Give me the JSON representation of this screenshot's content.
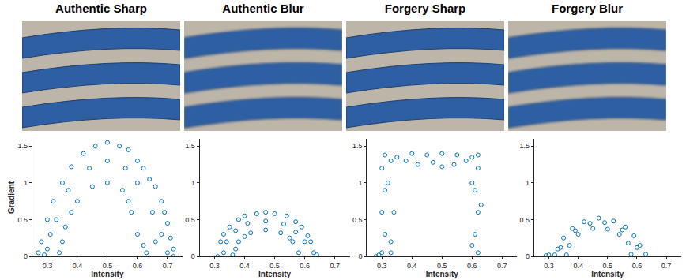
{
  "chart_data": [
    {
      "type": "scatter",
      "title": "Authentic Sharp",
      "x_label": "Intensity",
      "y_label": "Gradient",
      "xlim": [
        0.25,
        0.75
      ],
      "ylim": [
        0,
        1.6
      ],
      "xticks": [
        0.3,
        0.4,
        0.5,
        0.6,
        0.7
      ],
      "yticks": [
        0,
        0.5,
        1,
        1.5
      ],
      "color": "#0072bd",
      "marker": "circle-open",
      "x": [
        0.27,
        0.28,
        0.3,
        0.32,
        0.35,
        0.38,
        0.42,
        0.46,
        0.5,
        0.54,
        0.57,
        0.6,
        0.62,
        0.64,
        0.66,
        0.68,
        0.69,
        0.7,
        0.71,
        0.72,
        0.72,
        0.34,
        0.35,
        0.36,
        0.38,
        0.4,
        0.45,
        0.5,
        0.55,
        0.57,
        0.58,
        0.6,
        0.62,
        0.63,
        0.3,
        0.33,
        0.37,
        0.44,
        0.5,
        0.56,
        0.6,
        0.65,
        0.68,
        0.31,
        0.29,
        0.66,
        0.7
      ],
      "values": [
        0.05,
        0.2,
        0.5,
        0.75,
        1.0,
        1.22,
        1.4,
        1.5,
        1.55,
        1.5,
        1.45,
        1.3,
        1.2,
        1.05,
        0.95,
        0.75,
        0.6,
        0.45,
        0.25,
        0.1,
        0.0,
        0.05,
        0.2,
        0.4,
        0.6,
        0.75,
        0.95,
        1.0,
        0.9,
        0.75,
        0.6,
        0.3,
        0.15,
        0.05,
        0.1,
        0.5,
        0.9,
        1.2,
        1.3,
        1.2,
        1.0,
        0.6,
        0.3,
        0.3,
        0.02,
        0.2,
        0.05
      ]
    },
    {
      "type": "scatter",
      "title": "Authentic Blur",
      "x_label": "Intensity",
      "xlim": [
        0.25,
        0.75
      ],
      "ylim": [
        0,
        1.6
      ],
      "xticks": [
        0.3,
        0.4,
        0.5,
        0.6,
        0.7
      ],
      "yticks": [
        0,
        0.5,
        1,
        1.5
      ],
      "color": "#0072bd",
      "marker": "circle-open",
      "x": [
        0.31,
        0.32,
        0.33,
        0.35,
        0.38,
        0.4,
        0.44,
        0.47,
        0.5,
        0.54,
        0.57,
        0.59,
        0.61,
        0.62,
        0.64,
        0.36,
        0.37,
        0.38,
        0.4,
        0.42,
        0.47,
        0.52,
        0.55,
        0.56,
        0.58,
        0.34,
        0.37,
        0.41,
        0.47,
        0.53,
        0.57,
        0.6,
        0.63,
        0.33
      ],
      "values": [
        0.0,
        0.2,
        0.3,
        0.4,
        0.5,
        0.55,
        0.58,
        0.6,
        0.58,
        0.55,
        0.47,
        0.4,
        0.28,
        0.2,
        0.02,
        0.02,
        0.1,
        0.2,
        0.27,
        0.32,
        0.36,
        0.32,
        0.25,
        0.2,
        0.05,
        0.2,
        0.35,
        0.45,
        0.48,
        0.44,
        0.33,
        0.2,
        0.05,
        0.05
      ]
    },
    {
      "type": "scatter",
      "title": "Forgery Sharp",
      "x_label": "Intensity",
      "xlim": [
        0.25,
        0.75
      ],
      "ylim": [
        0,
        1.6
      ],
      "xticks": [
        0.3,
        0.4,
        0.5,
        0.6,
        0.7
      ],
      "yticks": [
        0,
        0.5,
        1,
        1.5
      ],
      "color": "#0072bd",
      "marker": "circle-open",
      "x": [
        0.29,
        0.3,
        0.31,
        0.3,
        0.31,
        0.3,
        0.31,
        0.33,
        0.34,
        0.32,
        0.33,
        0.28,
        0.33,
        0.35,
        0.4,
        0.45,
        0.5,
        0.55,
        0.6,
        0.42,
        0.5,
        0.58,
        0.38,
        0.47,
        0.54,
        0.62,
        0.62,
        0.61,
        0.62,
        0.61,
        0.6,
        0.63,
        0.62,
        0.6
      ],
      "values": [
        0.02,
        0.05,
        0.3,
        0.6,
        0.9,
        1.2,
        1.38,
        0.2,
        0.6,
        1.0,
        0.05,
        0.0,
        1.3,
        1.35,
        1.4,
        1.38,
        1.4,
        1.38,
        1.35,
        1.25,
        1.22,
        1.3,
        1.3,
        1.28,
        1.25,
        1.38,
        1.2,
        0.9,
        0.6,
        0.3,
        0.15,
        0.7,
        0.05,
        1.0
      ]
    },
    {
      "type": "scatter",
      "title": "Forgery Blur",
      "x_label": "Intensity",
      "xlim": [
        0.25,
        0.75
      ],
      "ylim": [
        0,
        1.6
      ],
      "xticks": [
        0.3,
        0.4,
        0.5,
        0.6,
        0.7
      ],
      "yticks": [
        0,
        0.5,
        1,
        1.5
      ],
      "color": "#0072bd",
      "marker": "circle-open",
      "x": [
        0.29,
        0.3,
        0.32,
        0.33,
        0.35,
        0.38,
        0.42,
        0.47,
        0.52,
        0.56,
        0.59,
        0.61,
        0.63,
        0.36,
        0.37,
        0.4,
        0.45,
        0.5,
        0.54,
        0.57,
        0.58,
        0.34,
        0.39,
        0.44,
        0.49,
        0.55,
        0.6
      ],
      "values": [
        0.01,
        0.02,
        0.02,
        0.1,
        0.25,
        0.38,
        0.47,
        0.52,
        0.48,
        0.4,
        0.28,
        0.15,
        0.03,
        0.02,
        0.15,
        0.3,
        0.38,
        0.37,
        0.3,
        0.18,
        0.03,
        0.12,
        0.35,
        0.45,
        0.46,
        0.36,
        0.12
      ]
    }
  ]
}
